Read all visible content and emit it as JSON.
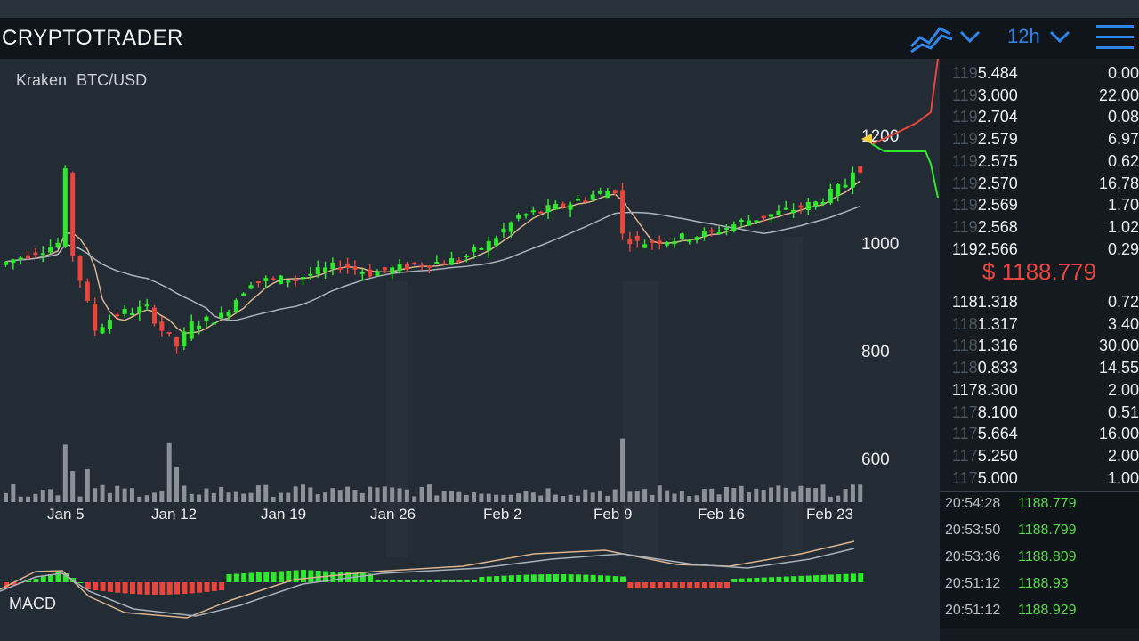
{
  "app": {
    "title": "CRYPTOTRADER"
  },
  "header": {
    "interval": "12h"
  },
  "market": {
    "exchange": "Kraken",
    "pair": "BTC/USD"
  },
  "chart": {
    "x_labels": [
      "Jan 5",
      "Jan 12",
      "Jan 19",
      "Jan 26",
      "Feb 2",
      "Feb 9",
      "Feb 16",
      "Feb 23"
    ],
    "y_labels": [
      "1200",
      "1000",
      "800",
      "600"
    ],
    "indicator_label": "MACD"
  },
  "orderbook": {
    "asks": [
      {
        "dim": "119",
        "bright": "5.484",
        "size": "0.00"
      },
      {
        "dim": "119",
        "bright": "3.000",
        "size": "22.00"
      },
      {
        "dim": "119",
        "bright": "2.704",
        "size": "0.08"
      },
      {
        "dim": "119",
        "bright": "2.579",
        "size": "6.97"
      },
      {
        "dim": "119",
        "bright": "2.575",
        "size": "0.62"
      },
      {
        "dim": "119",
        "bright": "2.570",
        "size": "16.78"
      },
      {
        "dim": "119",
        "bright": "2.569",
        "size": "1.70"
      },
      {
        "dim": "119",
        "bright": "2.568",
        "size": "1.02"
      },
      {
        "dim": "",
        "bright": "1192.566",
        "size": "0.29"
      }
    ],
    "last_price": "$ 1188.779",
    "bids": [
      {
        "dim": "",
        "bright": "1181.318",
        "size": "0.72"
      },
      {
        "dim": "118",
        "bright": "1.317",
        "size": "3.40"
      },
      {
        "dim": "118",
        "bright": "1.316",
        "size": "30.00"
      },
      {
        "dim": "118",
        "bright": "0.833",
        "size": "14.55"
      },
      {
        "dim": "",
        "bright": "1178.300",
        "size": "2.00"
      },
      {
        "dim": "117",
        "bright": "8.100",
        "size": "0.51"
      },
      {
        "dim": "117",
        "bright": "5.664",
        "size": "16.00"
      },
      {
        "dim": "117",
        "bright": "5.250",
        "size": "2.00"
      },
      {
        "dim": "117",
        "bright": "5.000",
        "size": "1.00"
      }
    ]
  },
  "trades": [
    {
      "time": "20:54:28",
      "price": "1188.779"
    },
    {
      "time": "20:53:50",
      "price": "1188.799"
    },
    {
      "time": "20:53:36",
      "price": "1188.809"
    },
    {
      "time": "20:51:12",
      "price": "1188.93"
    },
    {
      "time": "20:51:12",
      "price": "1188.929"
    }
  ],
  "colors": {
    "up": "#2ee82e",
    "down": "#e8463c",
    "accent": "#2f86e6",
    "ma_fast": "#d9b48f",
    "ma_slow": "#a9b1ba"
  },
  "icons": {
    "chart_type": "line-chart-icon",
    "menu": "hamburger-menu-icon",
    "dropdown": "chevron-down-icon"
  }
}
